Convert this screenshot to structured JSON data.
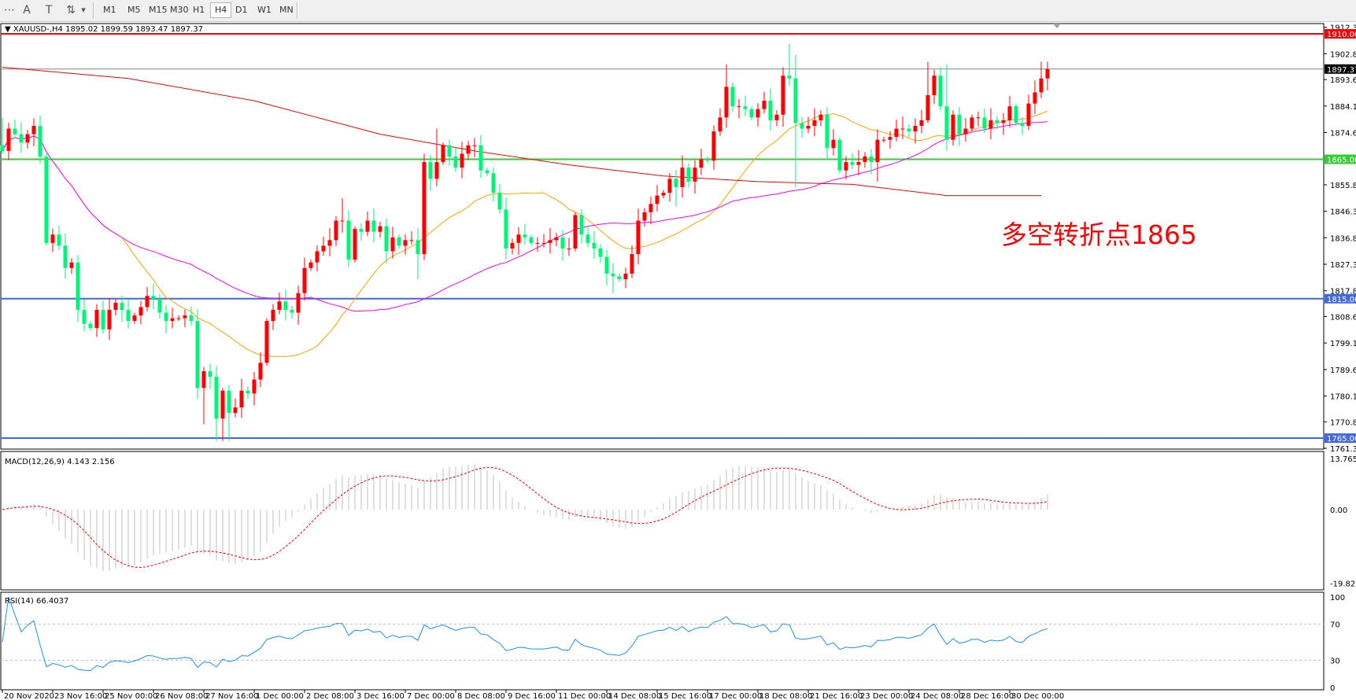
{
  "toolbar": {
    "tools": [
      {
        "icon": "period-separator-icon",
        "glyph": "⋯"
      },
      {
        "icon": "text-tool-icon",
        "glyph": "A"
      },
      {
        "icon": "text-label-tool-icon",
        "glyph": "T"
      },
      {
        "icon": "arrows-tool-icon",
        "glyph": "⇅"
      },
      {
        "icon": "dropdown-arrow-icon",
        "glyph": "▾"
      }
    ],
    "timeframes": [
      "M1",
      "M5",
      "M15",
      "M30",
      "H1",
      "H4",
      "D1",
      "W1",
      "MN"
    ],
    "active_timeframe": "H4"
  },
  "chart": {
    "header": "▼ XAUUSD-,H4  1895.02 1899.59 1893.47 1897.37",
    "annotation": "多空转折点1865",
    "price_axis_labels": [
      "1912.35",
      "1902.85",
      "1893.60",
      "1884.10",
      "1874.60",
      "1855.85",
      "1846.35",
      "1836.85",
      "1827.35",
      "1817.85",
      "1808.60",
      "1799.10",
      "1789.60",
      "1780.10",
      "1770.85",
      "1761.35"
    ],
    "levels": [
      {
        "price": 1910.0,
        "label": "1910.00",
        "color": "#ff0000"
      },
      {
        "price": 1897.37,
        "label": "1897.37",
        "color": "#000000",
        "line_color": "#778899"
      },
      {
        "price": 1865.0,
        "label": "1865.00",
        "color": "#32cd32"
      },
      {
        "price": 1815.0,
        "label": "1815.00",
        "color": "#4169e1"
      },
      {
        "price": 1765.0,
        "label": "1765.00",
        "color": "#4169e1"
      }
    ],
    "time_labels": [
      "20 Nov 2020",
      "23 Nov 16:00",
      "25 Nov 00:00",
      "26 Nov 08:00",
      "27 Nov 16:00",
      "1 Dec 00:00",
      "2 Dec 08:00",
      "3 Dec 16:00",
      "7 Dec 00:00",
      "8 Dec 08:00",
      "9 Dec 16:00",
      "11 Dec 00:00",
      "14 Dec 08:00",
      "15 Dec 16:00",
      "17 Dec 00:00",
      "18 Dec 08:00",
      "21 Dec 16:00",
      "23 Dec 00:00",
      "24 Dec 08:00",
      "28 Dec 16:00",
      "30 Dec 00:00"
    ]
  },
  "macd": {
    "label": "MACD(12,26,9) 4.143 2.156",
    "axis_labels": [
      "13.765",
      "0.00",
      "-19.82"
    ],
    "range": [
      -19.82,
      13.765
    ]
  },
  "rsi": {
    "label": "RSI(14) 66.4037",
    "axis_labels": [
      "100",
      "70",
      "30",
      "0"
    ]
  },
  "colors": {
    "bull": "#ff0000",
    "bear": "#00f47a",
    "ma_fast": "#ffa500",
    "ma_mid": "#ff00ff",
    "ma_long": "#ff0000",
    "macd_hist": "#c0c0c0",
    "macd_signal": "#ff0000",
    "rsi": "#1e90ff"
  },
  "chart_data": {
    "type": "candlestick",
    "symbol": "XAUUSD-",
    "timeframe": "H4",
    "ylim": [
      1761.35,
      1912.35
    ],
    "close": [
      1868,
      1876,
      1874,
      1871,
      1874,
      1877,
      1866,
      1835,
      1838,
      1834,
      1826,
      1828,
      1811,
      1806,
      1804.5,
      1811,
      1804,
      1811,
      1813.5,
      1811,
      1807,
      1809,
      1812,
      1816,
      1815,
      1810,
      1807,
      1808,
      1808,
      1809,
      1807,
      1783,
      1789,
      1787,
      1772,
      1782,
      1774,
      1776,
      1782,
      1781,
      1786,
      1792,
      1807,
      1811,
      1814,
      1811,
      1810,
      1817,
      1826,
      1828,
      1832,
      1834,
      1836,
      1843,
      1843,
      1829,
      1840,
      1839,
      1843,
      1839,
      1841,
      1832,
      1837,
      1834,
      1836,
      1836,
      1831,
      1864,
      1858,
      1864,
      1870,
      1866,
      1862,
      1867,
      1870,
      1870,
      1861,
      1860,
      1853,
      1847,
      1833,
      1835,
      1838,
      1837,
      1835,
      1835,
      1835,
      1836,
      1837,
      1833,
      1833,
      1845,
      1838,
      1835,
      1833,
      1830,
      1824,
      1823,
      1822,
      1824,
      1831,
      1843,
      1846,
      1849,
      1852,
      1853,
      1858,
      1855,
      1862,
      1857,
      1862,
      1865,
      1864.5,
      1875,
      1880,
      1891,
      1884,
      1884,
      1883,
      1880,
      1883,
      1886,
      1879,
      1881,
      1895,
      1894,
      1878,
      1876,
      1877,
      1879,
      1881,
      1869,
      1872,
      1861,
      1864,
      1863,
      1864,
      1866,
      1864,
      1872,
      1872,
      1873,
      1876,
      1876,
      1875,
      1877,
      1879,
      1888,
      1895,
      1884,
      1872,
      1881,
      1874,
      1876,
      1880,
      1880,
      1876,
      1879,
      1878,
      1879,
      1884,
      1878,
      1877,
      1885,
      1889,
      1894,
      1897.37
    ],
    "first_open": 1870,
    "extremes": [
      {
        "bar": 0,
        "high": 1880
      },
      {
        "bar": 32,
        "low": 1770
      },
      {
        "bar": 34,
        "low": 1764
      },
      {
        "bar": 35,
        "low": 1764
      },
      {
        "bar": 36,
        "low": 1764
      },
      {
        "bar": 54,
        "high": 1851
      },
      {
        "bar": 67,
        "high": 1867
      },
      {
        "bar": 69,
        "high": 1876
      },
      {
        "bar": 66,
        "low": 1822
      },
      {
        "bar": 107,
        "low": 1848
      },
      {
        "bar": 97,
        "low": 1817
      },
      {
        "bar": 115,
        "high": 1899
      },
      {
        "bar": 124,
        "high": 1898
      },
      {
        "bar": 125,
        "high": 1906.5
      },
      {
        "bar": 126,
        "high": 1902.5,
        "low": 1855
      },
      {
        "bar": 139,
        "low": 1857
      },
      {
        "bar": 147,
        "high": 1900
      },
      {
        "bar": 150,
        "high": 1899
      },
      {
        "bar": 165,
        "high": 1900
      }
    ],
    "ma_long_points": [
      {
        "bar": 0,
        "value": 1898
      },
      {
        "bar": 20,
        "value": 1894
      },
      {
        "bar": 40,
        "value": 1886
      },
      {
        "bar": 60,
        "value": 1874
      },
      {
        "bar": 75,
        "value": 1868
      },
      {
        "bar": 90,
        "value": 1863
      },
      {
        "bar": 105,
        "value": 1859
      },
      {
        "bar": 120,
        "value": 1857
      },
      {
        "bar": 135,
        "value": 1856
      },
      {
        "bar": 150,
        "value": 1852
      },
      {
        "bar": 165,
        "value": 1852
      }
    ],
    "ma_fast_period": 20,
    "ma_mid_period": 50
  }
}
